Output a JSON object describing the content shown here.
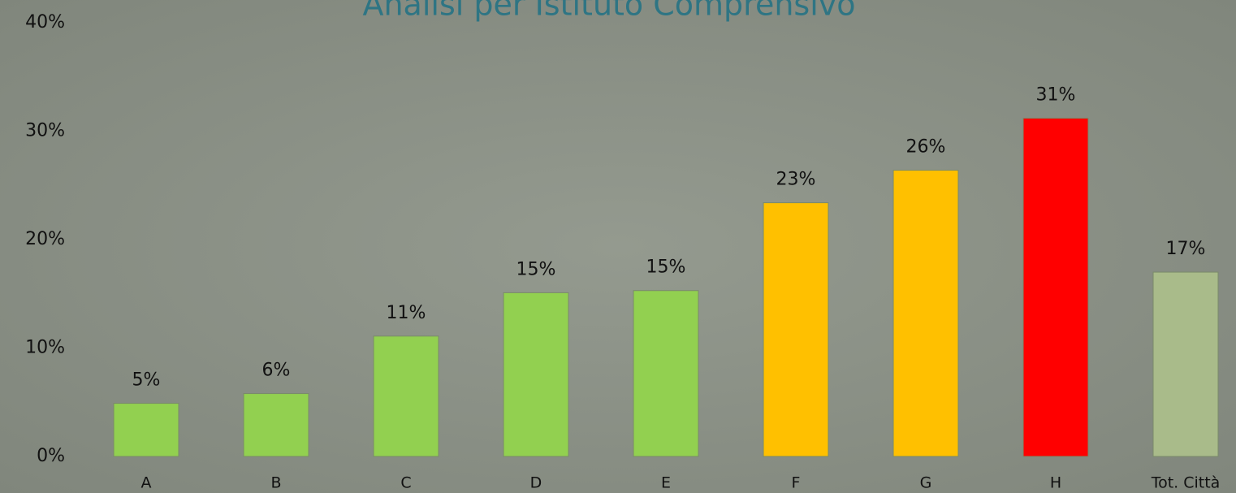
{
  "chart_data": {
    "type": "bar",
    "title": "Analisi per Istituto Comprensivo",
    "categories": [
      "A",
      "B",
      "C",
      "D",
      "E",
      "F",
      "G",
      "H",
      "Tot. Città"
    ],
    "values": [
      4.9,
      5.8,
      11.1,
      15.1,
      15.3,
      23.4,
      26.4,
      31.2,
      17.0
    ],
    "value_labels": [
      "5%",
      "6%",
      "11%",
      "15%",
      "15%",
      "23%",
      "26%",
      "31%",
      "17%"
    ],
    "colors": [
      "#92d050",
      "#92d050",
      "#92d050",
      "#92d050",
      "#92d050",
      "#ffc000",
      "#ffc000",
      "#ff0000",
      "#a9bb8a"
    ],
    "ylim": [
      0,
      40
    ],
    "yticks": [
      {
        "value": 0,
        "label": "0%"
      },
      {
        "value": 10,
        "label": "10%"
      },
      {
        "value": 20,
        "label": "20%"
      },
      {
        "value": 30,
        "label": "30%"
      },
      {
        "value": 40,
        "label": "40%"
      }
    ],
    "grid": false
  }
}
